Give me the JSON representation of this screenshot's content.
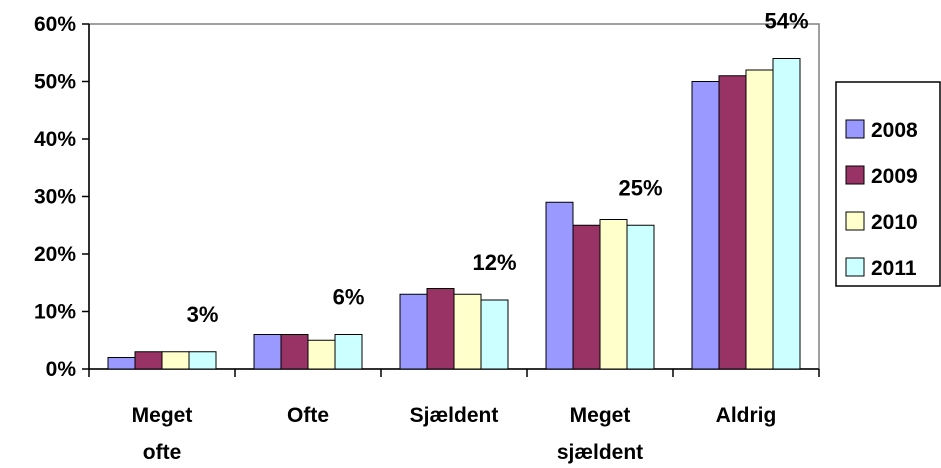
{
  "chart_data": {
    "type": "bar",
    "categories": [
      [
        "Meget",
        "ofte"
      ],
      [
        "Ofte"
      ],
      [
        "Sjældent"
      ],
      [
        "Meget",
        "sjældent"
      ],
      [
        "Aldrig"
      ]
    ],
    "series": [
      {
        "name": "2008",
        "color": "#9999FF",
        "values": [
          2,
          6,
          13,
          29,
          50
        ]
      },
      {
        "name": "2009",
        "color": "#993366",
        "values": [
          3,
          6,
          14,
          25,
          51
        ]
      },
      {
        "name": "2010",
        "color": "#FFFFCC",
        "values": [
          3,
          5,
          13,
          26,
          52
        ]
      },
      {
        "name": "2011",
        "color": "#CCFFFF",
        "values": [
          3,
          6,
          12,
          25,
          54
        ]
      }
    ],
    "data_labels": [
      "3%",
      "6%",
      "12%",
      "25%",
      "54%"
    ],
    "y_ticks": [
      "0%",
      "10%",
      "20%",
      "30%",
      "40%",
      "50%",
      "60%"
    ],
    "ylim": [
      0,
      60
    ],
    "grid": false,
    "legend_position": "right",
    "title": "",
    "xlabel": "",
    "ylabel": ""
  }
}
